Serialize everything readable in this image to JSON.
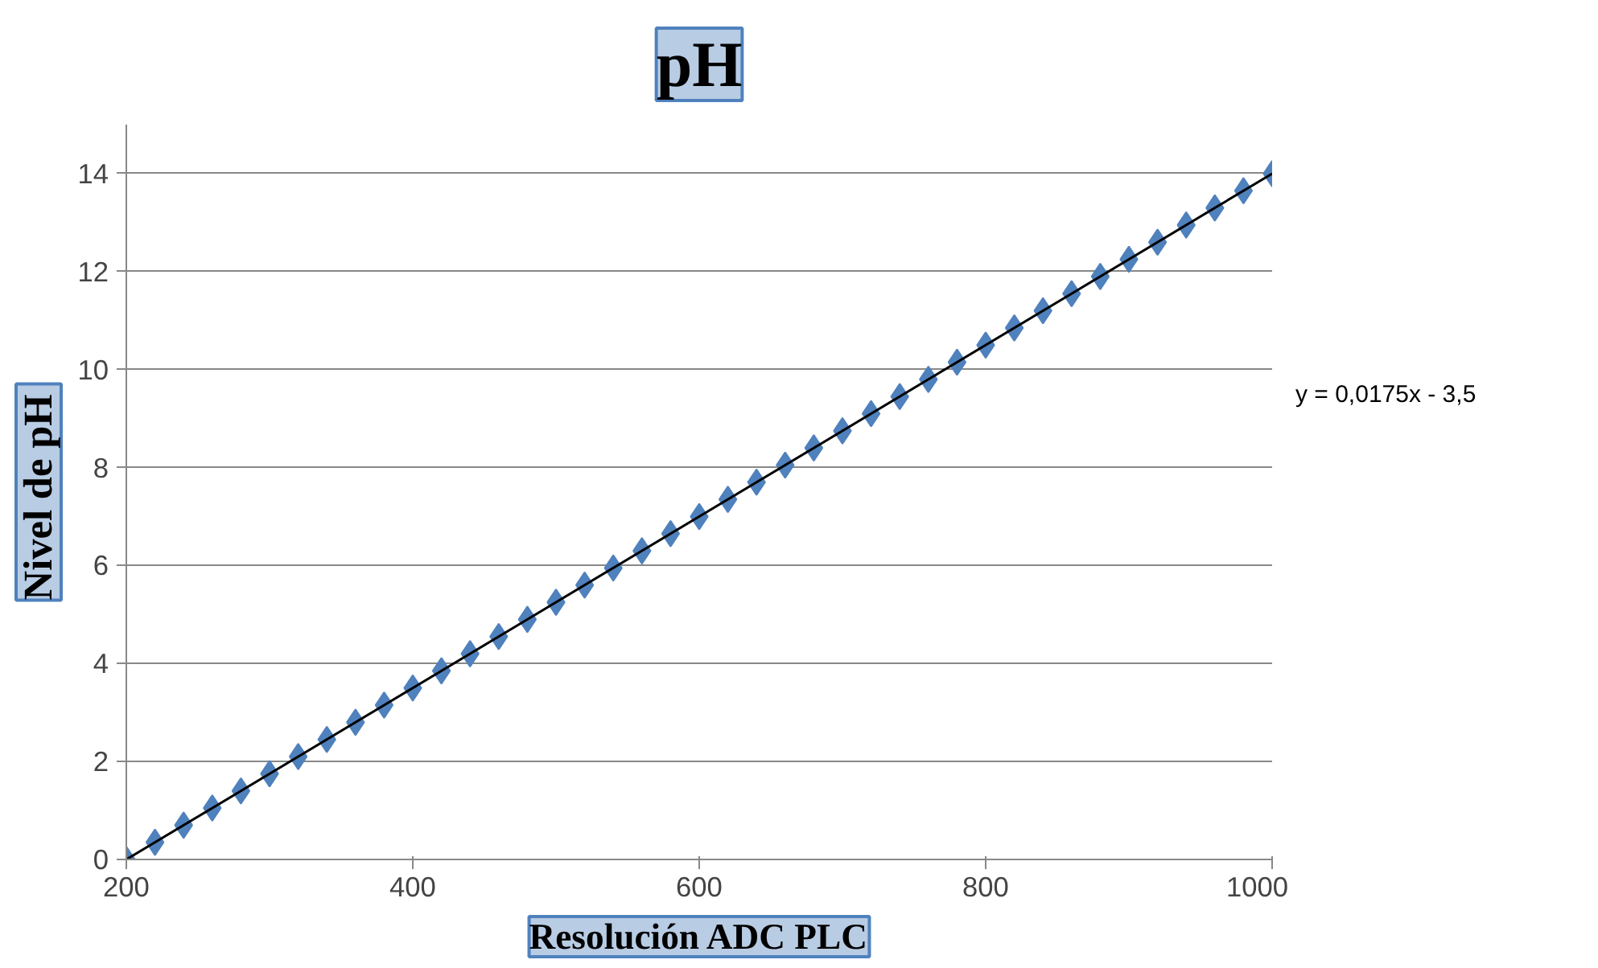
{
  "chart_data": {
    "type": "scatter",
    "title": "pH",
    "xlabel": "Resolución ADC PLC",
    "ylabel": "Nivel de  pH",
    "x": [
      200,
      220,
      240,
      260,
      280,
      300,
      320,
      340,
      360,
      380,
      400,
      420,
      440,
      460,
      480,
      500,
      520,
      540,
      560,
      580,
      600,
      620,
      640,
      660,
      680,
      700,
      720,
      740,
      760,
      780,
      800,
      820,
      840,
      860,
      880,
      900,
      920,
      940,
      960,
      980,
      1000
    ],
    "series": [
      {
        "color": "#4f81bd",
        "values": [
          0,
          0.35,
          0.7,
          1.05,
          1.4,
          1.75,
          2.1,
          2.45,
          2.8,
          3.15,
          3.5,
          3.85,
          4.2,
          4.55,
          4.9,
          5.25,
          5.6,
          5.95,
          6.3,
          6.65,
          7,
          7.35,
          7.7,
          8.05,
          8.4,
          8.75,
          9.1,
          9.45,
          9.8,
          10.15,
          10.5,
          10.85,
          11.2,
          11.55,
          11.9,
          12.25,
          12.6,
          12.95,
          13.3,
          13.65,
          14
        ]
      },
      {
        "type": "line",
        "marker": "none",
        "color": "#000000",
        "x": [
          200,
          1000
        ],
        "values": [
          0,
          14
        ]
      }
    ],
    "annotations": [
      "y = 0,0175x - 3,5"
    ],
    "marker": "diamond",
    "grid": "y",
    "xlim": [
      200,
      1000
    ],
    "ylim": [
      0,
      15
    ],
    "xticks": [
      200,
      400,
      600,
      800,
      1000
    ],
    "yticks": [
      0,
      2,
      4,
      6,
      8,
      10,
      12,
      14
    ]
  }
}
